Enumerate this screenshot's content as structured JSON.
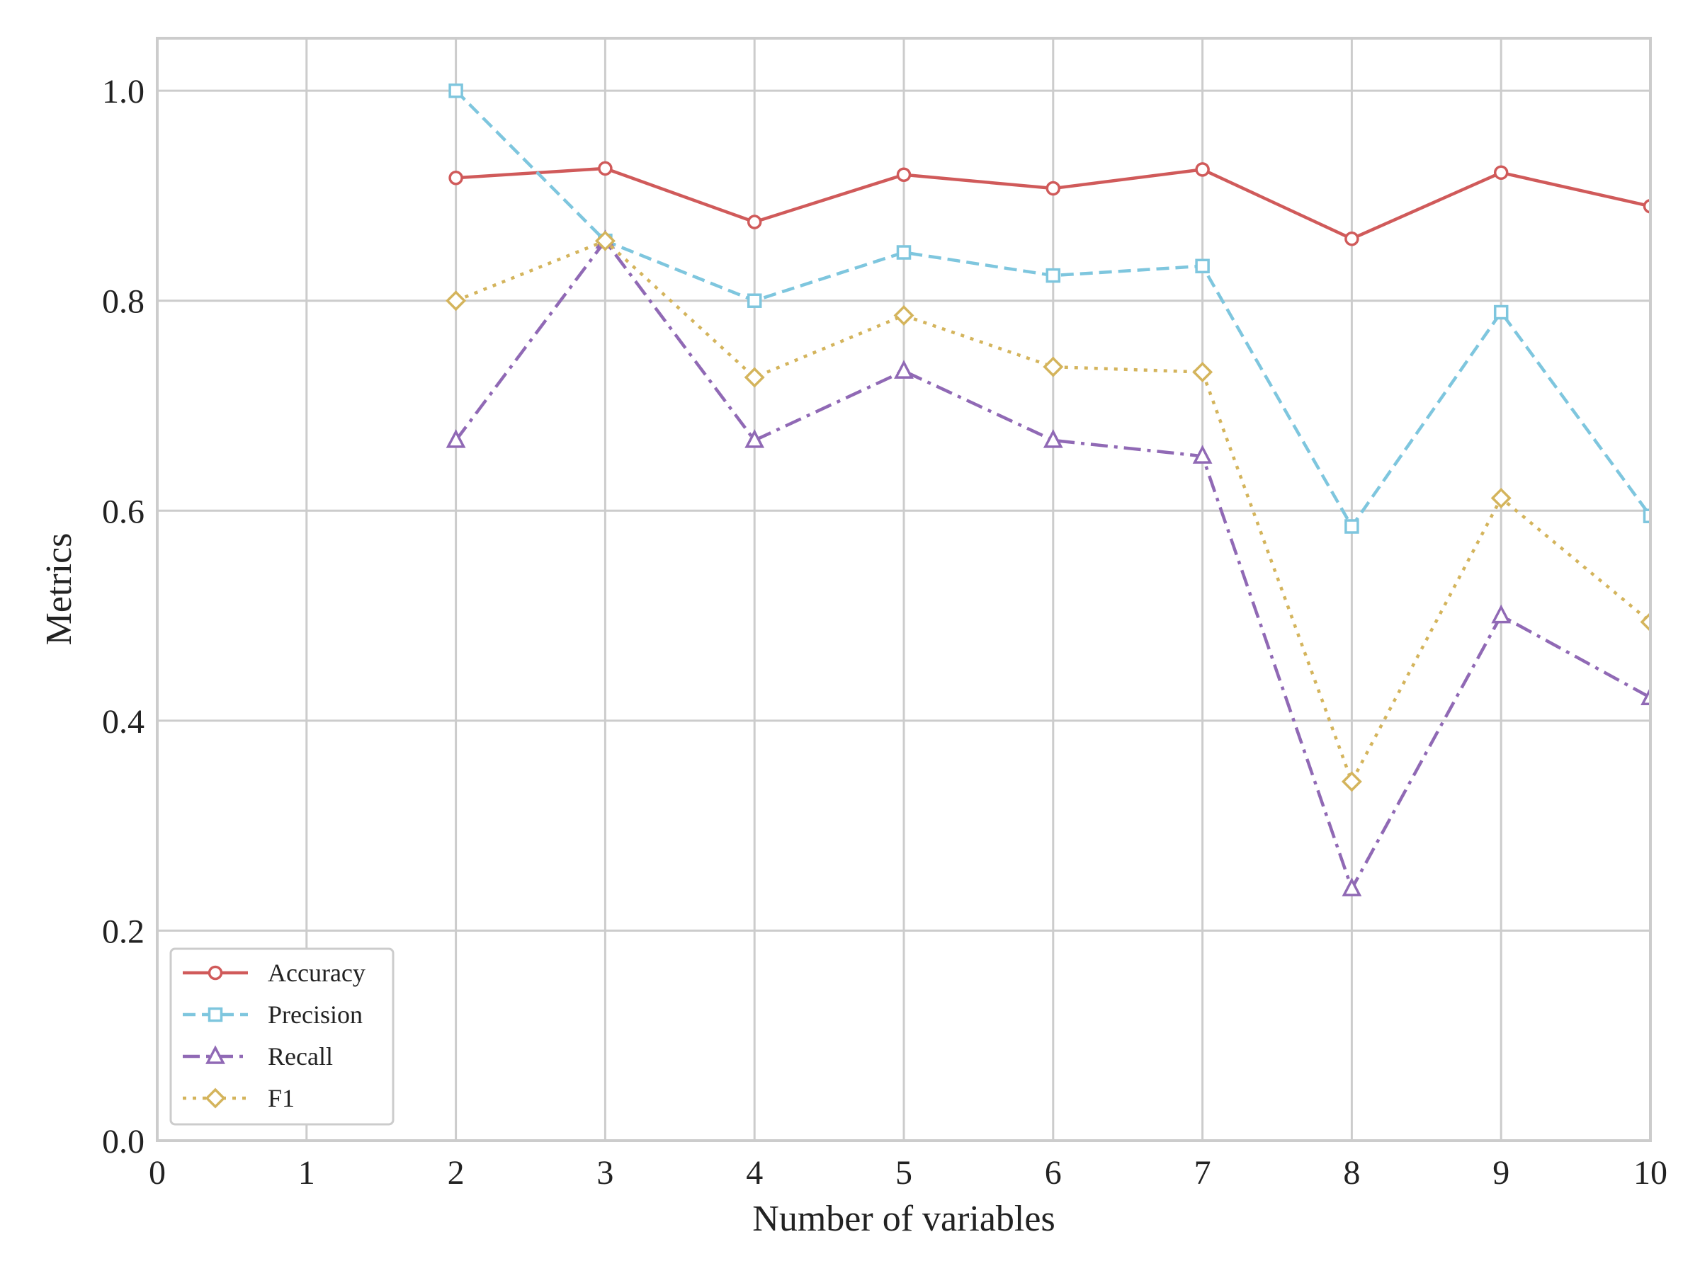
{
  "chart_data": {
    "type": "line",
    "title": "",
    "xlabel": "Number of variables",
    "ylabel": "Metrics",
    "xlim": [
      0,
      10
    ],
    "ylim": [
      0.0,
      1.05
    ],
    "xticks": [
      0,
      1,
      2,
      3,
      4,
      5,
      6,
      7,
      8,
      9,
      10
    ],
    "xtick_labels": [
      "0",
      "1",
      "2",
      "3",
      "4",
      "5",
      "6",
      "7",
      "8",
      "9",
      "10"
    ],
    "yticks": [
      0.0,
      0.2,
      0.4,
      0.6,
      0.8,
      1.0
    ],
    "ytick_labels": [
      "0.0",
      "0.2",
      "0.4",
      "0.6",
      "0.8",
      "1.0"
    ],
    "grid": true,
    "legend_position": "lower-left",
    "x": [
      2,
      3,
      4,
      5,
      6,
      7,
      8,
      9,
      10
    ],
    "series": [
      {
        "name": "Accuracy",
        "values": [
          0.917,
          0.926,
          0.875,
          0.92,
          0.907,
          0.925,
          0.859,
          0.922,
          0.89
        ],
        "color": "#d05a5a",
        "line_style": "solid",
        "marker": "circle"
      },
      {
        "name": "Precision",
        "values": [
          1.0,
          0.857,
          0.8,
          0.846,
          0.824,
          0.833,
          0.585,
          0.789,
          0.595
        ],
        "color": "#7ec6de",
        "line_style": "dashed",
        "marker": "square"
      },
      {
        "name": "Recall",
        "values": [
          0.667,
          0.857,
          0.667,
          0.733,
          0.667,
          0.652,
          0.24,
          0.5,
          0.422
        ],
        "color": "#9069b5",
        "line_style": "dashdot",
        "marker": "triangle"
      },
      {
        "name": "F1",
        "values": [
          0.8,
          0.857,
          0.727,
          0.786,
          0.737,
          0.732,
          0.342,
          0.612,
          0.494
        ],
        "color": "#d4b45c",
        "line_style": "dotted",
        "marker": "diamond"
      }
    ]
  }
}
